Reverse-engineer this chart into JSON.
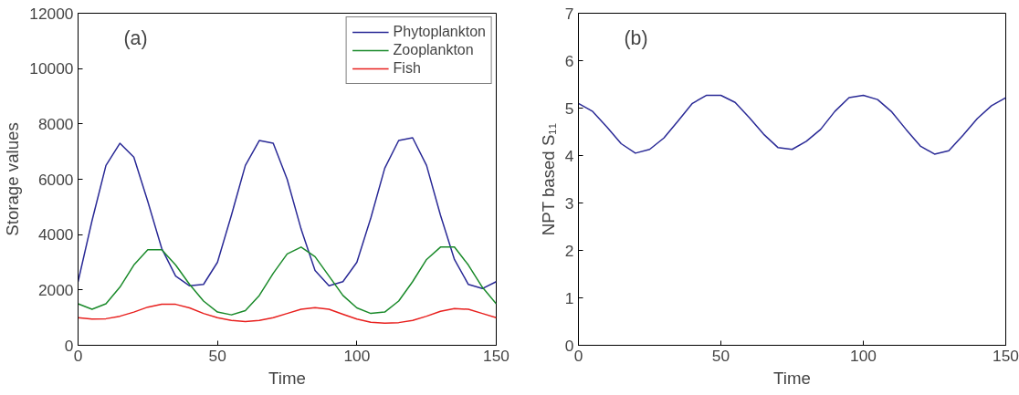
{
  "chart_data": [
    {
      "type": "line",
      "xlabel": "Time",
      "ylabel": "Storage values",
      "annotations": [
        "(a)"
      ],
      "x": [
        0,
        5,
        10,
        15,
        20,
        25,
        30,
        35,
        40,
        45,
        50,
        55,
        60,
        65,
        70,
        75,
        80,
        85,
        90,
        95,
        100,
        105,
        110,
        115,
        120,
        125,
        130,
        135,
        140,
        145,
        150
      ],
      "series": [
        {
          "name": "Phytoplankton",
          "color": "#2a2a96",
          "values": [
            2300,
            4500,
            6500,
            7300,
            6800,
            5200,
            3500,
            2500,
            2150,
            2200,
            3000,
            4700,
            6500,
            7400,
            7300,
            6000,
            4200,
            2700,
            2150,
            2300,
            3000,
            4600,
            6400,
            7400,
            7500,
            6500,
            4700,
            3100,
            2200,
            2050,
            2300
          ]
        },
        {
          "name": "Zooplankton",
          "color": "#1a8a2a",
          "values": [
            1500,
            1300,
            1500,
            2100,
            2900,
            3450,
            3450,
            2900,
            2200,
            1600,
            1200,
            1100,
            1250,
            1800,
            2600,
            3300,
            3550,
            3200,
            2500,
            1800,
            1350,
            1150,
            1200,
            1600,
            2300,
            3100,
            3550,
            3550,
            2900,
            2100,
            1500
          ]
        },
        {
          "name": "Fish",
          "color": "#e8201e",
          "values": [
            1000,
            950,
            960,
            1050,
            1200,
            1380,
            1480,
            1480,
            1350,
            1150,
            1000,
            900,
            860,
            900,
            1000,
            1150,
            1300,
            1360,
            1300,
            1120,
            950,
            830,
            800,
            820,
            900,
            1050,
            1230,
            1330,
            1300,
            1150,
            1000
          ]
        }
      ],
      "xlim": [
        0,
        150
      ],
      "xticks": [
        0,
        50,
        100,
        150
      ],
      "ylim": [
        0,
        12000
      ],
      "yticks": [
        0,
        2000,
        4000,
        6000,
        8000,
        10000,
        12000
      ],
      "grid": false,
      "legend": "top right",
      "marker": "none",
      "line_style": "solid"
    },
    {
      "type": "line",
      "xlabel": "Time",
      "ylabel": "NPT based S₁₁",
      "annotations": [
        "(b)"
      ],
      "x": [
        0,
        5,
        10,
        15,
        20,
        25,
        30,
        35,
        40,
        45,
        50,
        55,
        60,
        65,
        70,
        75,
        80,
        85,
        90,
        95,
        100,
        105,
        110,
        115,
        120,
        125,
        130,
        135,
        140,
        145,
        150
      ],
      "series": [
        {
          "color": "#2a2a96",
          "values": [
            5.1,
            4.93,
            4.6,
            4.25,
            4.05,
            4.13,
            4.37,
            4.73,
            5.1,
            5.27,
            5.27,
            5.12,
            4.8,
            4.45,
            4.17,
            4.13,
            4.3,
            4.55,
            4.93,
            5.22,
            5.27,
            5.18,
            4.92,
            4.55,
            4.2,
            4.03,
            4.1,
            4.43,
            4.78,
            5.05,
            5.22
          ]
        }
      ],
      "xlim": [
        0,
        150
      ],
      "xticks": [
        0,
        50,
        100,
        150
      ],
      "ylim": [
        0,
        7
      ],
      "yticks": [
        0,
        1,
        2,
        3,
        4,
        5,
        6,
        7
      ],
      "grid": false,
      "legend": false,
      "marker": "none",
      "line_style": "solid"
    }
  ]
}
